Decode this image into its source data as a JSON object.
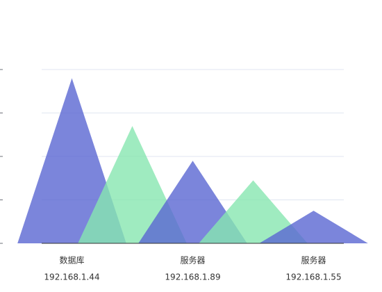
{
  "chart_data": {
    "type": "pictorial-triangle",
    "categories": [
      [
        "数据库",
        "192.168.1.44"
      ],
      null,
      [
        "服务器",
        "192.168.1.89"
      ],
      null,
      [
        "服务器",
        "192.168.1.55"
      ]
    ],
    "values": [
      76,
      54,
      38,
      29,
      15
    ],
    "colors": [
      "#5a67d2",
      "#87e6b0"
    ],
    "ylim": [
      0,
      80
    ],
    "yticks": [
      0,
      20,
      40,
      60,
      80
    ],
    "grid": true
  }
}
